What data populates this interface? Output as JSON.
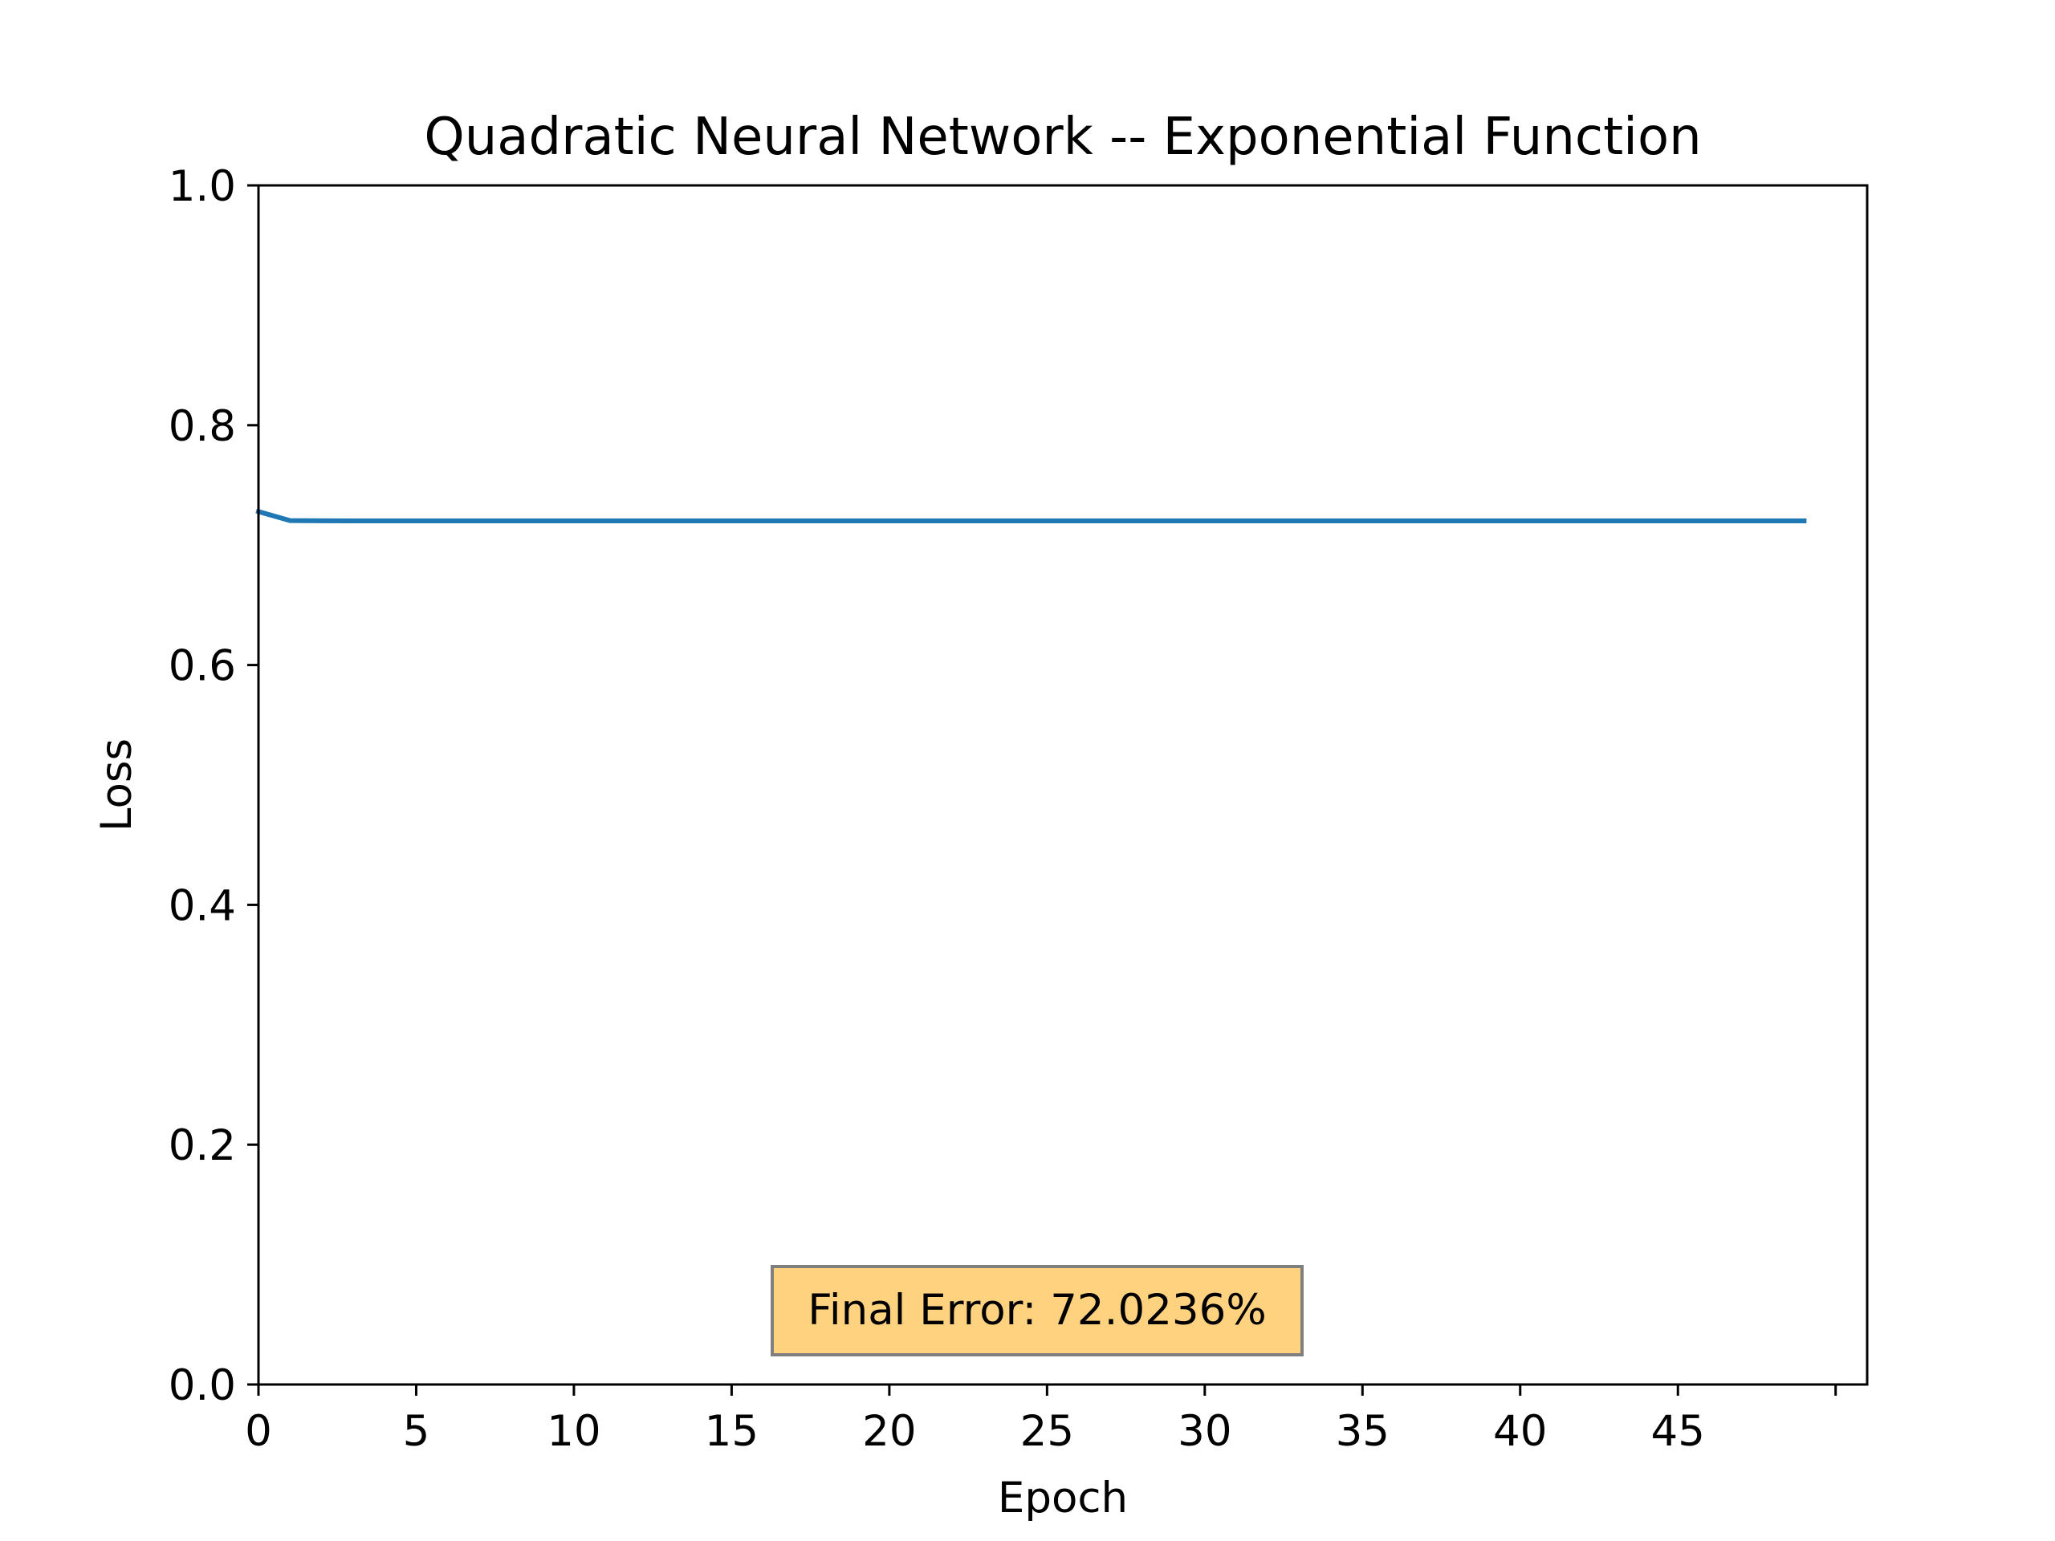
{
  "chart_data": {
    "type": "line",
    "title": "Quadratic Neural Network -- Exponential Function",
    "xlabel": "Epoch",
    "ylabel": "Loss",
    "xlim": [
      0,
      51
    ],
    "ylim": [
      0,
      1.0
    ],
    "x_ticks": [
      0,
      5,
      10,
      15,
      20,
      25,
      30,
      35,
      40,
      45,
      50
    ],
    "x_tick_labels": [
      "0",
      "5",
      "10",
      "15",
      "20",
      "25",
      "30",
      "35",
      "40",
      "45",
      ""
    ],
    "y_ticks": [
      0.0,
      0.2,
      0.4,
      0.6,
      0.8,
      1.0
    ],
    "y_tick_labels": [
      "0.0",
      "0.2",
      "0.4",
      "0.6",
      "0.8",
      "1.0"
    ],
    "grid": false,
    "series": [
      {
        "color": "#1f77b4",
        "x": [
          0,
          1,
          2,
          3,
          4,
          5,
          6,
          7,
          8,
          9,
          10,
          11,
          12,
          13,
          14,
          15,
          16,
          17,
          18,
          19,
          20,
          21,
          22,
          23,
          24,
          25,
          26,
          27,
          28,
          29,
          30,
          31,
          32,
          33,
          34,
          35,
          36,
          37,
          38,
          39,
          40,
          41,
          42,
          43,
          44,
          45,
          46,
          47,
          48,
          49
        ],
        "values": [
          0.728,
          0.7205,
          0.7203,
          0.7202,
          0.7202,
          0.7202,
          0.7202,
          0.7202,
          0.7202,
          0.7202,
          0.7202,
          0.7202,
          0.7202,
          0.7202,
          0.7202,
          0.7202,
          0.7202,
          0.7202,
          0.7202,
          0.7202,
          0.7202,
          0.7202,
          0.7202,
          0.7202,
          0.7202,
          0.7202,
          0.7202,
          0.7202,
          0.7202,
          0.7202,
          0.7202,
          0.7202,
          0.7202,
          0.7202,
          0.7202,
          0.7202,
          0.7202,
          0.7202,
          0.7202,
          0.7202,
          0.7202,
          0.7202,
          0.7202,
          0.7202,
          0.7202,
          0.7202,
          0.7202,
          0.7202,
          0.7202,
          0.7202
        ]
      }
    ],
    "annotation": {
      "text": "Final Error: 72.0236%",
      "position": "bottom-center",
      "background": "#ffd280",
      "border": "#7f7f7f"
    }
  }
}
